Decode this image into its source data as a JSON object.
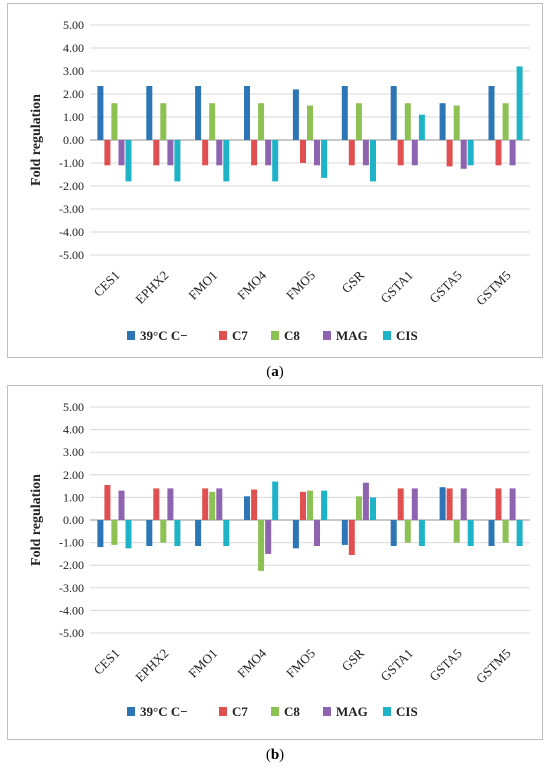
{
  "colors": {
    "39°C C−": "#2e75b6",
    "C7": "#e05050",
    "C8": "#8dc153",
    "MAG": "#8e63b0",
    "CIS": "#1fb3c8",
    "grid": "#d9d9d9",
    "axis": "#a6a6a6",
    "text": "#222222"
  },
  "chart_data": [
    {
      "panel": "a",
      "type": "bar",
      "ylabel": "Fold regulation",
      "ylim": [
        -5,
        5
      ],
      "yticks": [
        "5.00",
        "4.00",
        "3.00",
        "2.00",
        "1.00",
        "0.00",
        "-1.00",
        "-2.00",
        "-3.00",
        "-4.00",
        "-5.00"
      ],
      "grid": true,
      "legend": "bottom",
      "categories": [
        "CES1",
        "EPHX2",
        "FMO1",
        "FMO4",
        "FMO5",
        "GSR",
        "GSTA1",
        "GSTA5",
        "GSTM5"
      ],
      "series": [
        {
          "name": "39°C C−",
          "values": [
            2.35,
            2.35,
            2.35,
            2.35,
            2.2,
            2.35,
            2.35,
            1.6,
            2.35
          ]
        },
        {
          "name": "C7",
          "values": [
            -1.1,
            -1.1,
            -1.1,
            -1.1,
            -1.0,
            -1.1,
            -1.1,
            -1.15,
            -1.1
          ]
        },
        {
          "name": "C8",
          "values": [
            1.6,
            1.6,
            1.6,
            1.6,
            1.5,
            1.6,
            1.6,
            1.5,
            1.6
          ]
        },
        {
          "name": "MAG",
          "values": [
            -1.1,
            -1.1,
            -1.1,
            -1.1,
            -1.1,
            -1.1,
            -1.1,
            -1.25,
            -1.1
          ]
        },
        {
          "name": "CIS",
          "values": [
            -1.8,
            -1.8,
            -1.8,
            -1.8,
            -1.65,
            -1.8,
            1.1,
            -1.1,
            3.2
          ]
        }
      ]
    },
    {
      "panel": "b",
      "type": "bar",
      "ylabel": "Fold regulation",
      "ylim": [
        -5,
        5
      ],
      "yticks": [
        "5.00",
        "4.00",
        "3.00",
        "2.00",
        "1.00",
        "0.00",
        "-1.00",
        "-2.00",
        "-3.00",
        "-4.00",
        "-5.00"
      ],
      "grid": true,
      "legend": "bottom",
      "categories": [
        "CES1",
        "EPHX2",
        "FMO1",
        "FMO4",
        "FMO5",
        "GSR",
        "GSTA1",
        "GSTA5",
        "GSTM5"
      ],
      "series": [
        {
          "name": "39°C C−",
          "values": [
            -1.2,
            -1.15,
            -1.15,
            1.05,
            -1.25,
            -1.1,
            -1.15,
            1.45,
            -1.15
          ]
        },
        {
          "name": "C7",
          "values": [
            1.55,
            1.4,
            1.4,
            1.35,
            1.25,
            -1.55,
            1.4,
            1.4,
            1.4
          ]
        },
        {
          "name": "C8",
          "values": [
            -1.1,
            -1.0,
            1.25,
            -2.25,
            1.3,
            1.05,
            -1.0,
            -1.0,
            -1.0
          ]
        },
        {
          "name": "MAG",
          "values": [
            1.3,
            1.4,
            1.4,
            -1.5,
            -1.15,
            1.65,
            1.4,
            1.4,
            1.4
          ]
        },
        {
          "name": "CIS",
          "values": [
            -1.25,
            -1.15,
            -1.15,
            1.7,
            1.3,
            1.0,
            -1.15,
            -1.15,
            -1.15
          ]
        }
      ]
    }
  ],
  "labels": {
    "a": {
      "open": "(",
      "letter": "a",
      "close": ")"
    },
    "b": {
      "open": "(",
      "letter": "b",
      "close": ")"
    }
  }
}
